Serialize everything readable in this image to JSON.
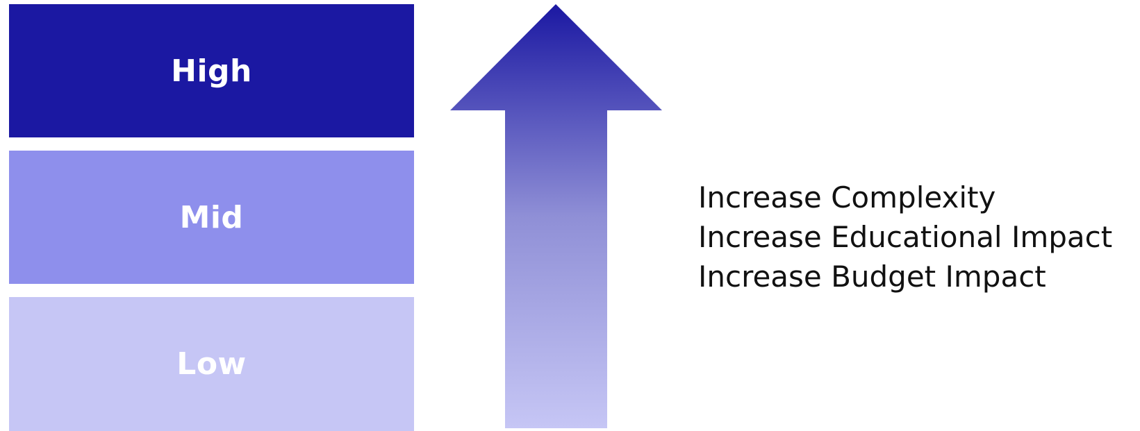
{
  "tiers": [
    {
      "label": "High",
      "color": "#1b18a2"
    },
    {
      "label": "Mid",
      "color": "#8e8fec"
    },
    {
      "label": "Low",
      "color": "#c6c6f5"
    }
  ],
  "arrow": {
    "direction": "up",
    "gradient_top": "#1b18a2",
    "gradient_bottom": "#c6c6f5"
  },
  "effects": [
    "Increase Complexity",
    "Increase Educational Impact",
    "Increase Budget Impact"
  ]
}
